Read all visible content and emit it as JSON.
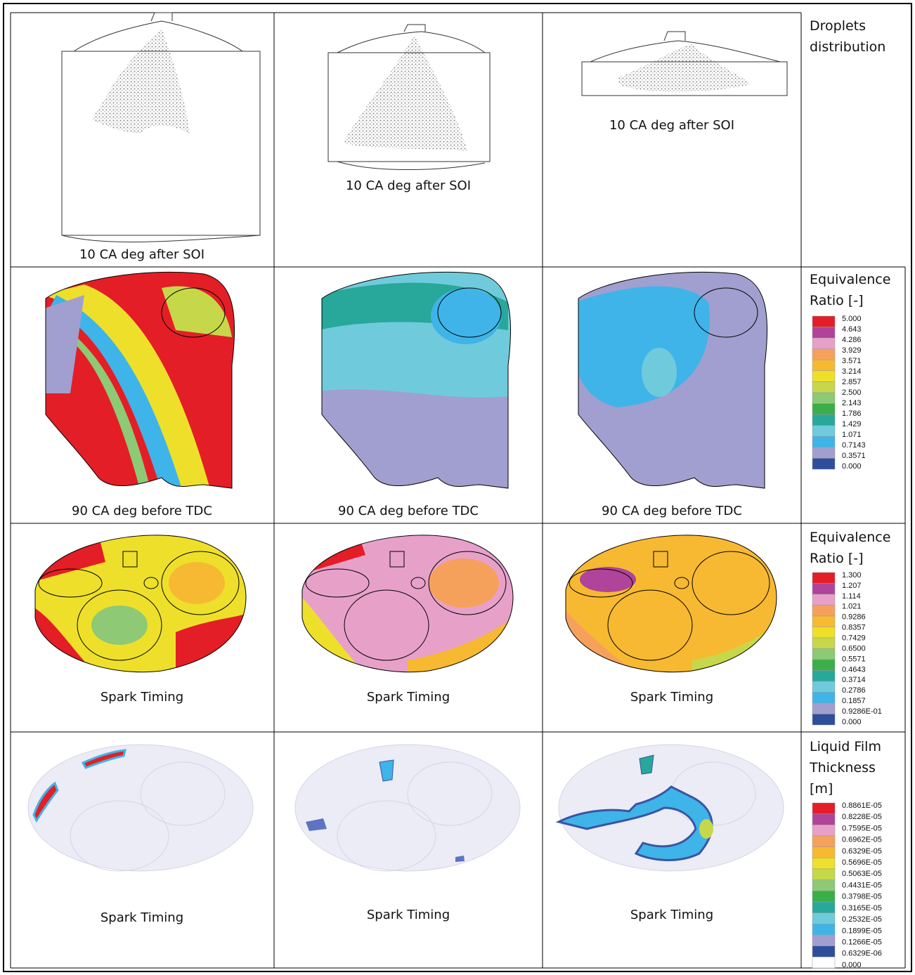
{
  "rows": [
    {
      "captions": [
        "10 CA deg after SOI",
        "10 CA deg after SOI",
        "10 CA deg after SOI"
      ],
      "legend": {
        "title": "Droplets distribution"
      }
    },
    {
      "captions": [
        "90 CA deg before TDC",
        "90 CA deg before TDC",
        "90 CA deg before TDC"
      ],
      "legend": {
        "title": "Equivalence Ratio [-]",
        "labels": [
          "5.000",
          "4.643",
          "4.286",
          "3.929",
          "3.571",
          "3.214",
          "2.857",
          "2.500",
          "2.143",
          "1.786",
          "1.429",
          "1.071",
          "0.7143",
          "0.3571",
          "0.000"
        ],
        "colors": [
          "#e41e26",
          "#b0439a",
          "#e7a1c9",
          "#f6a15b",
          "#f7b931",
          "#eee02a",
          "#c6d84a",
          "#8ec975",
          "#3bae4a",
          "#27a89a",
          "#6fcbdc",
          "#3fb4e8",
          "#a19fcf",
          "#2e4d9b"
        ]
      }
    },
    {
      "captions": [
        "Spark Timing",
        "Spark Timing",
        "Spark Timing"
      ],
      "legend": {
        "title": "Equivalence Ratio [-]",
        "labels": [
          "1.300",
          "1.207",
          "1.114",
          "1.021",
          "0.9286",
          "0.8357",
          "0.7429",
          "0.6500",
          "0.5571",
          "0.4643",
          "0.3714",
          "0.2786",
          "0.1857",
          "0.9286E-01",
          "0.000"
        ],
        "colors": [
          "#e41e26",
          "#b0439a",
          "#e7a1c9",
          "#f6a15b",
          "#f7b931",
          "#eee02a",
          "#c6d84a",
          "#8ec975",
          "#3bae4a",
          "#27a89a",
          "#6fcbdc",
          "#3fb4e8",
          "#a19fcf",
          "#2e4d9b"
        ]
      }
    },
    {
      "captions": [
        "Spark Timing",
        "Spark Timing",
        "Spark Timing"
      ],
      "legend": {
        "title": "Liquid Film Thickness [m]",
        "labels": [
          "0.8861E-05",
          "0.8228E-05",
          "0.7595E-05",
          "0.6962E-05",
          "0.6329E-05",
          "0.5696E-05",
          "0.5063E-05",
          "0.4431E-05",
          "0.3798E-05",
          "0.3165E-05",
          "0.2532E-05",
          "0.1899E-05",
          "0.1266E-05",
          "0.6329E-06",
          "0.000"
        ],
        "colors": [
          "#e41e26",
          "#b0439a",
          "#e7a1c9",
          "#f6a15b",
          "#f7b931",
          "#eee02a",
          "#c6d84a",
          "#8ec975",
          "#3bae4a",
          "#27a89a",
          "#6fcbdc",
          "#3fb4e8",
          "#a19fcf",
          "#2e4d9b",
          "#ffffff"
        ]
      }
    }
  ]
}
